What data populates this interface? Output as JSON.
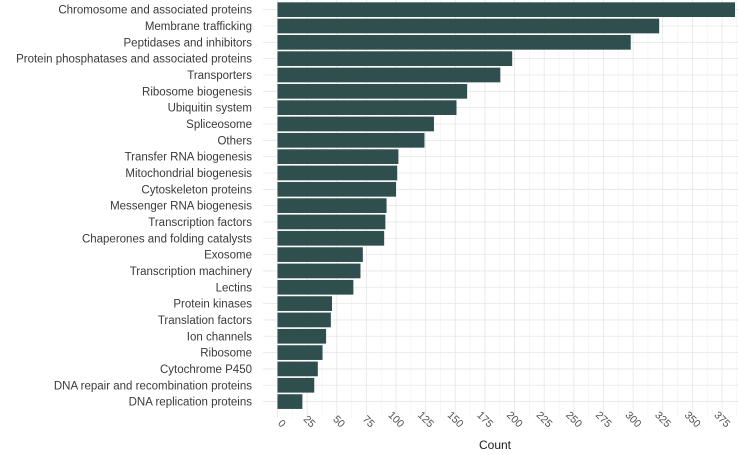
{
  "chart_data": {
    "type": "bar",
    "orientation": "horizontal",
    "xlabel": "Count",
    "ylabel": "",
    "xlim": [
      0,
      400
    ],
    "xticks": [
      0,
      25,
      50,
      75,
      100,
      125,
      150,
      175,
      200,
      225,
      250,
      275,
      300,
      325,
      350,
      375,
      400
    ],
    "grid": true,
    "bar_color": "#2f4f4f",
    "categories": [
      "Chromosome and associated proteins",
      "Membrane trafficking",
      "Peptidases and inhibitors",
      "Protein phosphatases and associated proteins",
      "Transporters",
      "Ribosome biogenesis",
      "Ubiquitin system",
      "Spliceosome",
      "Others",
      "Transfer RNA biogenesis",
      "Mitochondrial biogenesis",
      "Cytoskeleton proteins",
      "Messenger RNA biogenesis",
      "Transcription factors",
      "Chaperones and folding catalysts",
      "Exosome",
      "Transcription machinery",
      "Lectins",
      "Protein kinases",
      "Translation factors",
      "Ion channels",
      "Ribosome",
      "Cytochrome P450",
      "DNA repair and recombination proteins",
      "DNA replication proteins"
    ],
    "values": [
      386,
      322,
      298,
      198,
      188,
      160,
      151,
      132,
      124,
      102,
      101,
      100,
      92,
      91,
      90,
      72,
      70,
      64,
      46,
      45,
      41,
      38,
      34,
      31,
      21
    ]
  }
}
